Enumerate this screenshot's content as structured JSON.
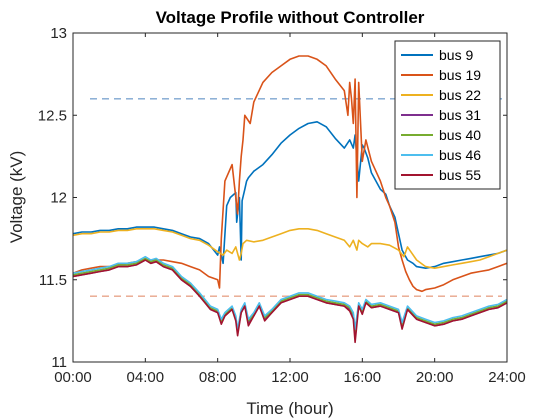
{
  "chart_data": {
    "type": "line",
    "title": "Voltage Profile without Controller",
    "xlabel": "Time (hour)",
    "ylabel": "Voltage (kV)",
    "xlim": [
      0,
      24
    ],
    "ylim": [
      11,
      13
    ],
    "x_ticks": [
      0,
      4,
      8,
      12,
      16,
      20,
      24
    ],
    "x_tick_labels": [
      "00:00",
      "04:00",
      "08:00",
      "12:00",
      "16:00",
      "20:00",
      "24:00"
    ],
    "y_ticks": [
      11,
      11.5,
      12,
      12.5,
      13
    ],
    "y_tick_labels": [
      "11",
      "11.5",
      "12",
      "12.5",
      "13"
    ],
    "grid": false,
    "legend_position": "top-right",
    "reference_lines": [
      {
        "y": 12.6,
        "color": "#7EA6D1",
        "style": "dashed"
      },
      {
        "y": 11.4,
        "color": "#E8A48A",
        "style": "dashed"
      }
    ],
    "series": [
      {
        "name": "bus 9",
        "color": "#0072BD",
        "x": [
          0,
          0.5,
          1,
          1.5,
          2,
          2.5,
          3,
          3.5,
          4,
          4.5,
          5,
          5.5,
          6,
          6.5,
          7,
          7.5,
          8,
          8.1,
          8.3,
          8.5,
          8.7,
          9,
          9.05,
          9.2,
          9.3,
          9.35,
          9.5,
          9.6,
          9.7,
          10,
          10.5,
          11,
          11.5,
          12,
          12.5,
          13,
          13.5,
          14,
          14.5,
          15,
          15.3,
          15.5,
          15.6,
          15.8,
          16,
          16.1,
          16.3,
          16.5,
          17,
          17.3,
          17.5,
          17.8,
          18,
          18.2,
          18.5,
          18.8,
          19,
          19.5,
          20,
          20.5,
          21,
          21.5,
          22,
          22.5,
          23,
          23.5,
          24
        ],
        "y": [
          11.78,
          11.79,
          11.79,
          11.8,
          11.8,
          11.81,
          11.81,
          11.82,
          11.82,
          11.82,
          11.81,
          11.8,
          11.78,
          11.76,
          11.75,
          11.72,
          11.65,
          11.7,
          11.6,
          11.95,
          12.0,
          12.03,
          11.85,
          12.0,
          11.62,
          11.98,
          12.05,
          12.1,
          12.12,
          12.16,
          12.2,
          12.26,
          12.33,
          12.38,
          12.42,
          12.45,
          12.46,
          12.43,
          12.36,
          12.3,
          12.35,
          12.3,
          12.38,
          12.1,
          12.32,
          12.3,
          12.24,
          12.15,
          12.05,
          12.02,
          11.95,
          11.88,
          11.78,
          11.68,
          11.62,
          11.6,
          11.58,
          11.57,
          11.58,
          11.6,
          11.61,
          11.62,
          11.63,
          11.64,
          11.65,
          11.66,
          11.68
        ]
      },
      {
        "name": "bus 19",
        "color": "#D95319",
        "x": [
          0,
          0.5,
          1,
          1.5,
          2,
          2.5,
          3,
          3.5,
          4,
          4.5,
          5,
          5.5,
          6,
          6.5,
          7,
          7.5,
          8,
          8.1,
          8.2,
          8.4,
          8.6,
          8.8,
          9,
          9.1,
          9.2,
          9.3,
          9.4,
          9.5,
          9.8,
          10,
          10.5,
          11,
          11.5,
          12,
          12.5,
          13,
          13.5,
          14,
          14.5,
          15,
          15.2,
          15.3,
          15.4,
          15.5,
          15.6,
          15.7,
          15.8,
          16,
          16.2,
          16.5,
          17,
          17.3,
          17.5,
          17.8,
          18,
          18.2,
          18.4,
          18.6,
          18.8,
          19,
          19.3,
          19.5,
          20,
          20.5,
          21,
          21.5,
          22,
          22.5,
          23,
          23.5,
          24
        ],
        "y": [
          11.54,
          11.56,
          11.57,
          11.58,
          11.58,
          11.59,
          11.6,
          11.61,
          11.62,
          11.62,
          11.62,
          11.61,
          11.6,
          11.58,
          11.56,
          11.52,
          11.5,
          11.45,
          11.75,
          12.1,
          12.15,
          12.2,
          12.0,
          11.9,
          12.1,
          12.25,
          12.35,
          12.5,
          12.45,
          12.58,
          12.7,
          12.76,
          12.8,
          12.84,
          12.86,
          12.86,
          12.84,
          12.8,
          12.72,
          12.65,
          12.5,
          12.7,
          12.6,
          12.45,
          12.72,
          12.0,
          12.7,
          12.22,
          12.35,
          12.22,
          12.1,
          12.0,
          11.95,
          11.85,
          11.7,
          11.62,
          11.55,
          11.5,
          11.46,
          11.44,
          11.43,
          11.44,
          11.45,
          11.47,
          11.5,
          11.52,
          11.54,
          11.55,
          11.56,
          11.58,
          11.6
        ]
      },
      {
        "name": "bus 22",
        "color": "#EDB120",
        "x": [
          0,
          0.5,
          1,
          1.5,
          2,
          2.5,
          3,
          3.5,
          4,
          4.5,
          5,
          5.5,
          6,
          6.5,
          7,
          7.5,
          8,
          8.3,
          8.5,
          8.8,
          9,
          9.2,
          9.3,
          9.4,
          9.6,
          10,
          10.5,
          11,
          11.5,
          12,
          12.5,
          13,
          13.5,
          14,
          14.5,
          15,
          15.3,
          15.5,
          15.7,
          15.8,
          16,
          16.3,
          16.5,
          17,
          17.5,
          18,
          18.3,
          18.5,
          19,
          19.5,
          20,
          20.5,
          21,
          21.5,
          22,
          22.5,
          23,
          23.5,
          24
        ],
        "y": [
          11.77,
          11.78,
          11.78,
          11.79,
          11.79,
          11.8,
          11.8,
          11.81,
          11.81,
          11.81,
          11.8,
          11.79,
          11.77,
          11.75,
          11.74,
          11.71,
          11.67,
          11.65,
          11.68,
          11.66,
          11.7,
          11.62,
          11.66,
          11.72,
          11.74,
          11.73,
          11.74,
          11.76,
          11.78,
          11.8,
          11.81,
          11.81,
          11.8,
          11.78,
          11.76,
          11.74,
          11.7,
          11.74,
          11.68,
          11.74,
          11.72,
          11.7,
          11.72,
          11.72,
          11.71,
          11.68,
          11.64,
          11.7,
          11.62,
          11.58,
          11.57,
          11.58,
          11.59,
          11.6,
          11.61,
          11.62,
          11.64,
          11.66,
          11.68
        ]
      },
      {
        "name": "bus 31",
        "color": "#7E2F8E",
        "x": [
          0,
          0.5,
          1,
          1.5,
          2,
          2.5,
          3,
          3.5,
          4,
          4.3,
          4.6,
          5,
          5.5,
          6,
          6.5,
          7,
          7.3,
          7.6,
          8,
          8.2,
          8.4,
          8.6,
          8.8,
          9,
          9.1,
          9.3,
          9.5,
          9.7,
          10,
          10.3,
          10.6,
          11,
          11.5,
          12,
          12.5,
          13,
          13.5,
          14,
          14.5,
          15,
          15.3,
          15.5,
          15.6,
          15.8,
          16,
          16.2,
          16.5,
          17,
          17.5,
          18,
          18.2,
          18.5,
          19,
          19.5,
          20,
          20.5,
          21,
          21.5,
          22,
          22.5,
          23,
          23.5,
          24
        ],
        "y": [
          11.52,
          11.53,
          11.54,
          11.55,
          11.56,
          11.58,
          11.58,
          11.59,
          11.62,
          11.6,
          11.61,
          11.58,
          11.56,
          11.5,
          11.46,
          11.4,
          11.36,
          11.32,
          11.3,
          11.24,
          11.28,
          11.3,
          11.32,
          11.26,
          11.18,
          11.3,
          11.34,
          11.24,
          11.28,
          11.34,
          11.26,
          11.3,
          11.36,
          11.38,
          11.4,
          11.4,
          11.38,
          11.36,
          11.35,
          11.34,
          11.32,
          11.28,
          11.18,
          11.34,
          11.3,
          11.36,
          11.33,
          11.34,
          11.32,
          11.3,
          11.22,
          11.32,
          11.26,
          11.24,
          11.22,
          11.23,
          11.25,
          11.26,
          11.28,
          11.3,
          11.32,
          11.33,
          11.36
        ]
      },
      {
        "name": "bus 40",
        "color": "#77AC30",
        "x": [
          0,
          0.5,
          1,
          1.5,
          2,
          2.5,
          3,
          3.5,
          4,
          4.3,
          4.6,
          5,
          5.5,
          6,
          6.5,
          7,
          7.3,
          7.6,
          8,
          8.2,
          8.4,
          8.6,
          8.8,
          9,
          9.1,
          9.3,
          9.5,
          9.7,
          10,
          10.3,
          10.6,
          11,
          11.5,
          12,
          12.5,
          13,
          13.5,
          14,
          14.5,
          15,
          15.3,
          15.5,
          15.6,
          15.8,
          16,
          16.2,
          16.5,
          17,
          17.5,
          18,
          18.2,
          18.5,
          19,
          19.5,
          20,
          20.5,
          21,
          21.5,
          22,
          22.5,
          23,
          23.5,
          24
        ],
        "y": [
          11.53,
          11.54,
          11.55,
          11.56,
          11.57,
          11.59,
          11.59,
          11.6,
          11.63,
          11.61,
          11.62,
          11.59,
          11.57,
          11.51,
          11.47,
          11.41,
          11.37,
          11.33,
          11.31,
          11.25,
          11.29,
          11.31,
          11.33,
          11.27,
          11.19,
          11.31,
          11.35,
          11.25,
          11.29,
          11.35,
          11.27,
          11.31,
          11.37,
          11.39,
          11.41,
          11.41,
          11.39,
          11.37,
          11.36,
          11.35,
          11.33,
          11.29,
          11.19,
          11.35,
          11.31,
          11.37,
          11.34,
          11.35,
          11.33,
          11.31,
          11.23,
          11.33,
          11.27,
          11.25,
          11.23,
          11.24,
          11.26,
          11.27,
          11.29,
          11.31,
          11.33,
          11.34,
          11.37
        ]
      },
      {
        "name": "bus 46",
        "color": "#4DBEEE",
        "x": [
          0,
          0.5,
          1,
          1.5,
          2,
          2.5,
          3,
          3.5,
          4,
          4.3,
          4.6,
          5,
          5.5,
          6,
          6.5,
          7,
          7.3,
          7.6,
          8,
          8.2,
          8.4,
          8.6,
          8.8,
          9,
          9.1,
          9.3,
          9.5,
          9.7,
          10,
          10.3,
          10.6,
          11,
          11.5,
          12,
          12.5,
          13,
          13.5,
          14,
          14.5,
          15,
          15.3,
          15.5,
          15.6,
          15.8,
          16,
          16.2,
          16.5,
          17,
          17.5,
          18,
          18.2,
          18.5,
          19,
          19.5,
          20,
          20.5,
          21,
          21.5,
          22,
          22.5,
          23,
          23.5,
          24
        ],
        "y": [
          11.54,
          11.55,
          11.56,
          11.57,
          11.58,
          11.6,
          11.6,
          11.61,
          11.64,
          11.62,
          11.63,
          11.6,
          11.58,
          11.52,
          11.48,
          11.42,
          11.38,
          11.34,
          11.32,
          11.26,
          11.3,
          11.32,
          11.34,
          11.28,
          11.2,
          11.32,
          11.36,
          11.26,
          11.3,
          11.36,
          11.28,
          11.32,
          11.38,
          11.4,
          11.42,
          11.42,
          11.4,
          11.38,
          11.37,
          11.36,
          11.34,
          11.3,
          11.2,
          11.36,
          11.32,
          11.38,
          11.35,
          11.36,
          11.34,
          11.32,
          11.24,
          11.34,
          11.28,
          11.26,
          11.24,
          11.25,
          11.27,
          11.28,
          11.3,
          11.32,
          11.34,
          11.35,
          11.38
        ]
      },
      {
        "name": "bus 55",
        "color": "#A2142F",
        "x": [
          0,
          0.5,
          1,
          1.5,
          2,
          2.5,
          3,
          3.5,
          4,
          4.3,
          4.6,
          5,
          5.5,
          6,
          6.5,
          7,
          7.3,
          7.6,
          8,
          8.2,
          8.4,
          8.6,
          8.8,
          9,
          9.1,
          9.3,
          9.5,
          9.7,
          10,
          10.3,
          10.6,
          11,
          11.5,
          12,
          12.5,
          13,
          13.5,
          14,
          14.5,
          15,
          15.3,
          15.5,
          15.6,
          15.8,
          16,
          16.2,
          16.5,
          17,
          17.5,
          18,
          18.2,
          18.5,
          19,
          19.5,
          20,
          20.5,
          21,
          21.5,
          22,
          22.5,
          23,
          23.5,
          24
        ],
        "y": [
          11.52,
          11.53,
          11.54,
          11.55,
          11.56,
          11.58,
          11.58,
          11.59,
          11.62,
          11.6,
          11.61,
          11.58,
          11.56,
          11.5,
          11.46,
          11.4,
          11.36,
          11.32,
          11.3,
          11.23,
          11.28,
          11.3,
          11.32,
          11.25,
          11.16,
          11.3,
          11.34,
          11.22,
          11.28,
          11.34,
          11.25,
          11.3,
          11.36,
          11.38,
          11.4,
          11.4,
          11.38,
          11.36,
          11.35,
          11.34,
          11.31,
          11.26,
          11.12,
          11.34,
          11.29,
          11.36,
          11.33,
          11.34,
          11.32,
          11.3,
          11.2,
          11.32,
          11.26,
          11.24,
          11.22,
          11.23,
          11.25,
          11.26,
          11.28,
          11.3,
          11.32,
          11.33,
          11.36
        ]
      }
    ]
  }
}
